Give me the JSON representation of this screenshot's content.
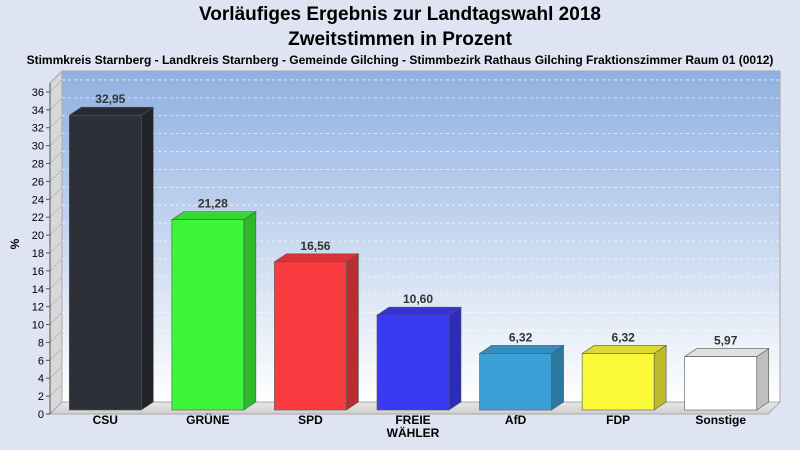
{
  "title": "Vorläufiges Ergebnis zur Landtagswahl 2018",
  "subtitle": "Zweitstimmen in Prozent",
  "location": "Stimmkreis Starnberg - Landkreis Starnberg - Gemeinde Gilching - Stimmbezirk Rathaus Gilching Fraktionszimmer Raum 01 (0012)",
  "chart_data": {
    "type": "bar",
    "title": "Vorläufiges Ergebnis zur Landtagswahl 2018",
    "subtitle": "Zweitstimmen in Prozent",
    "ylabel": "%",
    "xlabel": "",
    "ylim": [
      0,
      37
    ],
    "yticks": [
      0,
      2,
      4,
      6,
      8,
      10,
      12,
      14,
      16,
      18,
      20,
      22,
      24,
      26,
      28,
      30,
      32,
      34,
      36
    ],
    "grid": true,
    "legend": "none",
    "categories": [
      [
        "CSU"
      ],
      [
        "GRÜNE"
      ],
      [
        "SPD"
      ],
      [
        "FREIE",
        "WÄHLER"
      ],
      [
        "AfD"
      ],
      [
        "FDP"
      ],
      [
        "Sonstige"
      ]
    ],
    "values": [
      32.95,
      21.28,
      16.56,
      10.6,
      6.32,
      6.32,
      5.97
    ],
    "value_labels": [
      "32,95",
      "21,28",
      "16,56",
      "10,60",
      "6,32",
      "6,32",
      "5,97"
    ],
    "colors": [
      "#2d3038",
      "#3df53a",
      "#f93a3e",
      "#3a3af5",
      "#3ba0d6",
      "#f9f93a",
      "#ffffff"
    ]
  }
}
